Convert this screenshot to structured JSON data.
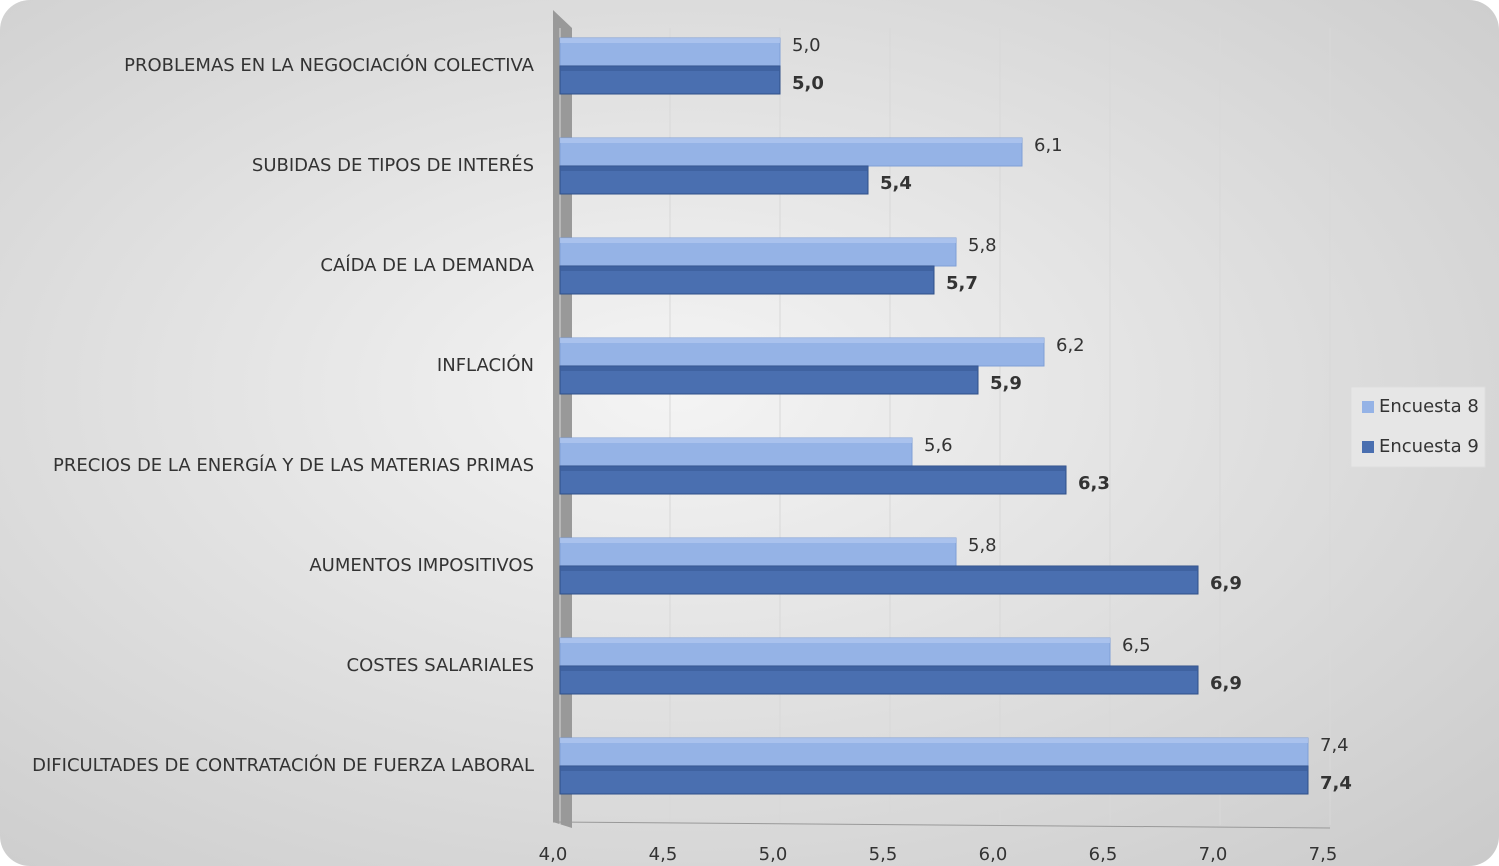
{
  "chart_data": {
    "type": "bar",
    "orientation": "horizontal",
    "categories": [
      "PROBLEMAS EN LA NEGOCIACIÓN COLECTIVA",
      "SUBIDAS DE TIPOS DE INTERÉS",
      "CAÍDA DE LA DEMANDA",
      "INFLACIÓN",
      "PRECIOS DE LA ENERGÍA Y DE LAS MATERIAS PRIMAS",
      "AUMENTOS IMPOSITIVOS",
      "COSTES SALARIALES",
      "DIFICULTADES DE CONTRATACIÓN DE FUERZA LABORAL"
    ],
    "series": [
      {
        "name": "Encuesta 8",
        "color": "#95b3e6",
        "values": [
          5.0,
          6.1,
          5.8,
          6.2,
          5.6,
          5.8,
          6.5,
          7.4
        ],
        "value_labels": [
          "5,0",
          "6,1",
          "5,8",
          "6,2",
          "5,6",
          "5,8",
          "6,5",
          "7,4"
        ]
      },
      {
        "name": "Encuesta 9",
        "color": "#4a6fb0",
        "values": [
          5.0,
          5.4,
          5.7,
          5.9,
          6.3,
          6.9,
          6.9,
          7.4
        ],
        "value_labels": [
          "5,0",
          "5,4",
          "5,7",
          "5,9",
          "6,3",
          "6,9",
          "6,9",
          "7,4"
        ]
      }
    ],
    "xlim": [
      4.0,
      7.5
    ],
    "xticks": [
      {
        "value": 4.0,
        "label": "4,0"
      },
      {
        "value": 4.5,
        "label": "4,5"
      },
      {
        "value": 5.0,
        "label": "5,0"
      },
      {
        "value": 5.5,
        "label": "5,5"
      },
      {
        "value": 6.0,
        "label": "6,0"
      },
      {
        "value": 6.5,
        "label": "6,5"
      },
      {
        "value": 7.0,
        "label": "7,0"
      },
      {
        "value": 7.5,
        "label": "7,5"
      }
    ],
    "grid": true,
    "legend": "right"
  }
}
